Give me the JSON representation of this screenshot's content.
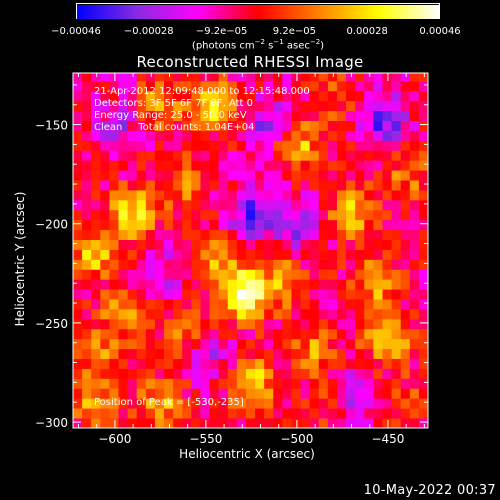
{
  "chart_data": {
    "type": "heatmap",
    "title": "Reconstructed RHESSI Image",
    "xlabel": "Heliocentric X (arcsec)",
    "ylabel": "Heliocentric Y (arcsec)",
    "xlim": [
      -623,
      -428
    ],
    "ylim": [
      -303,
      -124
    ],
    "xticks": [
      -600,
      -550,
      -500,
      -450
    ],
    "xtick_labels": [
      "−600",
      "−550",
      "−500",
      "−450"
    ],
    "yticks": [
      -150,
      -200,
      -250,
      -300
    ],
    "ytick_labels": [
      "−150",
      "−200",
      "−250",
      "−300"
    ],
    "colorbar": {
      "range": [
        -0.00046,
        0.00046
      ],
      "tick_labels": [
        "−0.00046",
        "−0.00028",
        "−9.2e−05",
        "9.2e−05",
        "0.00028",
        "0.00046"
      ],
      "units": [
        "(photons cm",
        "−2",
        " s",
        "−1",
        " asec",
        "−2",
        ")"
      ],
      "colormap": [
        "#0000ff",
        "#8a2be2",
        "#ff00ff",
        "#ff0000",
        "#ff8000",
        "#ffff00",
        "#ffffff"
      ]
    },
    "grid": false,
    "peak": [
      -530,
      -235
    ],
    "hotspots": [
      {
        "x": -612,
        "y": -215,
        "value": 0.00028
      },
      {
        "x": -590,
        "y": -195,
        "value": 0.00034
      },
      {
        "x": -575,
        "y": -140,
        "value": 0.00025
      },
      {
        "x": -562,
        "y": -180,
        "value": 0.0002
      },
      {
        "x": -545,
        "y": -140,
        "value": 0.0003
      },
      {
        "x": -530,
        "y": -235,
        "value": 0.00046
      },
      {
        "x": -545,
        "y": -218,
        "value": 0.00024
      },
      {
        "x": -500,
        "y": -160,
        "value": 0.0003
      },
      {
        "x": -508,
        "y": -230,
        "value": 0.00026
      },
      {
        "x": -470,
        "y": -195,
        "value": 0.00028
      },
      {
        "x": -458,
        "y": -230,
        "value": 0.00024
      },
      {
        "x": -450,
        "y": -258,
        "value": 0.00032
      },
      {
        "x": -490,
        "y": -262,
        "value": 0.00022
      },
      {
        "x": -525,
        "y": -280,
        "value": 0.00034
      },
      {
        "x": -575,
        "y": -290,
        "value": 0.00026
      },
      {
        "x": -610,
        "y": -265,
        "value": 0.0002
      },
      {
        "x": -612,
        "y": -290,
        "value": 0.00022
      },
      {
        "x": -482,
        "y": -290,
        "value": 0.00016
      },
      {
        "x": -440,
        "y": -290,
        "value": 0.00012
      },
      {
        "x": -595,
        "y": -245,
        "value": 0.00024
      },
      {
        "x": -560,
        "y": -255,
        "value": 0.00018
      },
      {
        "x": -480,
        "y": -135,
        "value": 0.00014
      },
      {
        "x": -440,
        "y": -175,
        "value": 0.00018
      }
    ],
    "coldspots": [
      {
        "x": -525,
        "y": -195,
        "value": -0.00028
      },
      {
        "x": -515,
        "y": -150,
        "value": -0.00024
      },
      {
        "x": -452,
        "y": -148,
        "value": -0.00028
      },
      {
        "x": -598,
        "y": -150,
        "value": -0.00018
      },
      {
        "x": -470,
        "y": -288,
        "value": -0.00026
      },
      {
        "x": -500,
        "y": -200,
        "value": -0.00022
      },
      {
        "x": -575,
        "y": -225,
        "value": -0.00016
      },
      {
        "x": -548,
        "y": -268,
        "value": -0.00018
      }
    ]
  },
  "info": {
    "line1": "21-Apr-2012 12:09:48.000 to 12:15:48.000",
    "line2": "Detectors: 3F 5F 6F 7F 8F, Att 0",
    "line3": "Energy Range: 25.0 - 50.0 keV",
    "line4": "Clean     Total counts: 1.04E+04"
  },
  "peak_label": "Position of Peak = [-530,-235]",
  "timestamp": "10-May-2022 00:37"
}
